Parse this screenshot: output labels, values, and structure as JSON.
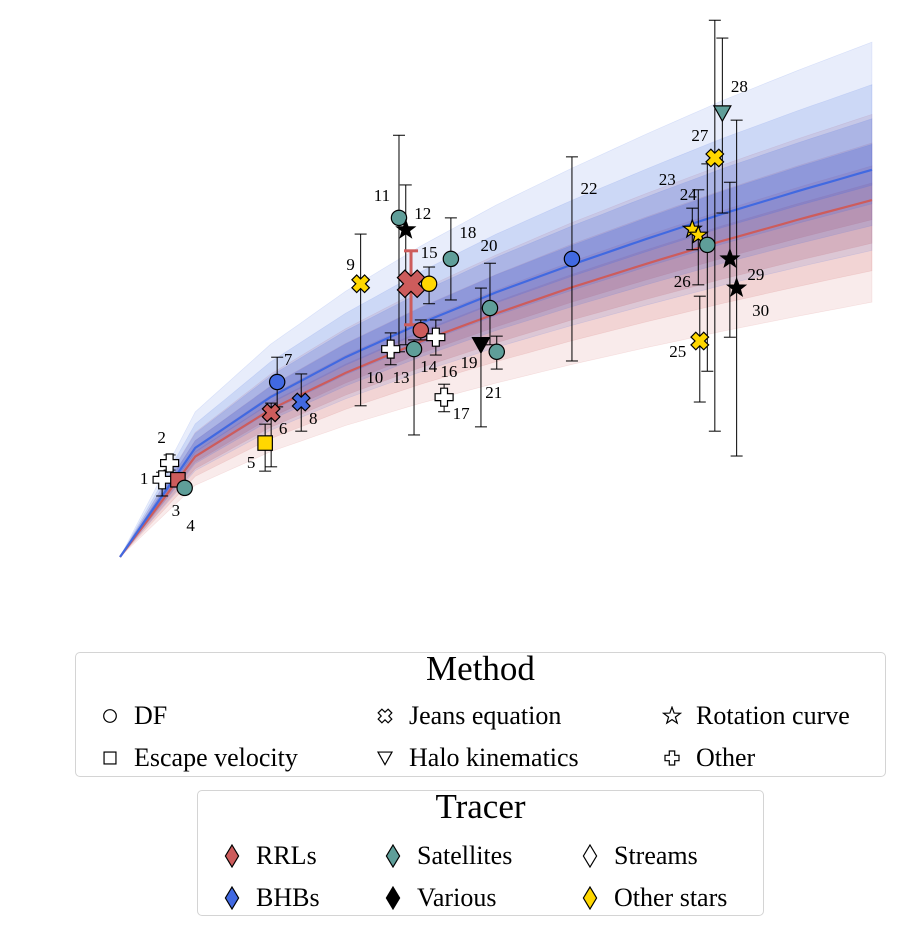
{
  "chart_data": {
    "type": "scatter",
    "title": "",
    "xlabel": "",
    "ylabel": "",
    "xlim": [
      0,
      100
    ],
    "ylim": [
      0,
      100
    ],
    "grid": false,
    "axes_visible": false,
    "tracer_colors": {
      "RRLs": "#cd5c5c",
      "BHBs": "#4169e1",
      "Satellites": "#5f9e99",
      "Various": "#000000",
      "Streams": "#ffffff",
      "Other stars": "#ffd700"
    },
    "method_markers": {
      "DF": "circle",
      "Escape velocity": "square",
      "Jeans equation": "x",
      "Halo kinematics": "triangle-down",
      "Rotation curve": "star",
      "Other": "plus"
    },
    "model_curves": [
      {
        "color": "#cd5c5c",
        "x": [
          0,
          10,
          20,
          30,
          40,
          50,
          60,
          70,
          80,
          90,
          100
        ],
        "y": [
          0,
          18.6,
          27.3,
          34.1,
          39.9,
          45.1,
          49.9,
          54.3,
          58.5,
          62.4,
          66.1
        ],
        "uncertainty_band": true
      },
      {
        "color": "#4169e1",
        "x": [
          0,
          10,
          20,
          30,
          40,
          50,
          60,
          70,
          80,
          90,
          100
        ],
        "y": [
          0,
          20.2,
          29.6,
          37.0,
          43.3,
          49.0,
          54.1,
          58.9,
          63.5,
          67.7,
          71.7
        ],
        "uncertainty_band": true
      }
    ],
    "points": [
      {
        "label": "1",
        "x": 5.6,
        "y": 14.3,
        "err": [
          11.3,
          15.7
        ],
        "method": "Other",
        "tracer": "Streams"
      },
      {
        "label": "2",
        "x": 6.6,
        "y": 17.4,
        "err": [
          16.1,
          18.9
        ],
        "method": "Other",
        "tracer": "Streams"
      },
      {
        "label": "3",
        "x": 7.7,
        "y": 14.3,
        "err": null,
        "method": "Escape velocity",
        "tracer": "RRLs"
      },
      {
        "label": "4",
        "x": 8.6,
        "y": 12.8,
        "err": null,
        "method": "DF",
        "tracer": "Satellites"
      },
      {
        "label": "5",
        "x": 19.3,
        "y": 21.1,
        "err": [
          15.9,
          24.6
        ],
        "method": "Escape velocity",
        "tracer": "Other stars"
      },
      {
        "label": "6",
        "x": 20.1,
        "y": 26.7,
        "err": [
          16.7,
          28.5
        ],
        "method": "Jeans equation",
        "tracer": "RRLs"
      },
      {
        "label": "7",
        "x": 20.9,
        "y": 32.4,
        "err": [
          27.8,
          37.0
        ],
        "method": "DF",
        "tracer": "BHBs"
      },
      {
        "label": "8",
        "x": 24.1,
        "y": 28.7,
        "err": [
          23.3,
          33.9
        ],
        "method": "Jeans equation",
        "tracer": "BHBs"
      },
      {
        "label": "9",
        "x": 32.0,
        "y": 50.6,
        "err": [
          28.0,
          59.8
        ],
        "method": "Jeans equation",
        "tracer": "Other stars"
      },
      {
        "label": "10",
        "x": 36.0,
        "y": 38.5,
        "err": [
          35.6,
          41.5
        ],
        "method": "Other",
        "tracer": "Streams"
      },
      {
        "label": "11",
        "x": 37.1,
        "y": 62.8,
        "err": [
          38.0,
          78.1
        ],
        "method": "DF",
        "tracer": "Satellites"
      },
      {
        "label": "12",
        "x": 38.0,
        "y": 60.6,
        "err": [
          39.3,
          68.9
        ],
        "method": "Rotation curve",
        "tracer": "Various"
      },
      {
        "label": "",
        "x": 38.7,
        "y": 50.6,
        "err": [
          43.0,
          56.7
        ],
        "method": "Jeans equation",
        "tracer": "RRLs",
        "highlight": true
      },
      {
        "label": "13",
        "x": 39.1,
        "y": 38.5,
        "err": [
          22.6,
          40.2
        ],
        "method": "DF",
        "tracer": "Satellites"
      },
      {
        "label": "14",
        "x": 40.0,
        "y": 42.0,
        "err": [
          40.2,
          43.9
        ],
        "method": "DF",
        "tracer": "RRLs"
      },
      {
        "label": "15",
        "x": 41.1,
        "y": 50.6,
        "err": [
          46.9,
          53.7
        ],
        "method": "DF",
        "tracer": "Other stars"
      },
      {
        "label": "16",
        "x": 42.0,
        "y": 40.7,
        "err": [
          37.4,
          43.9
        ],
        "method": "Other",
        "tracer": "Streams"
      },
      {
        "label": "17",
        "x": 43.1,
        "y": 29.6,
        "err": [
          26.9,
          32.0
        ],
        "method": "Other",
        "tracer": "Streams"
      },
      {
        "label": "18",
        "x": 44.0,
        "y": 55.2,
        "err": [
          47.6,
          62.8
        ],
        "method": "DF",
        "tracer": "Satellites"
      },
      {
        "label": "19",
        "x": 48.0,
        "y": 39.3,
        "err": [
          24.1,
          49.8
        ],
        "method": "Halo kinematics",
        "tracer": "Various"
      },
      {
        "label": "20",
        "x": 49.2,
        "y": 46.1,
        "err": [
          39.3,
          54.4
        ],
        "method": "DF",
        "tracer": "Satellites"
      },
      {
        "label": "21",
        "x": 50.1,
        "y": 38.0,
        "err": [
          34.8,
          40.9
        ],
        "method": "DF",
        "tracer": "Satellites"
      },
      {
        "label": "22",
        "x": 60.1,
        "y": 55.2,
        "err": [
          36.3,
          74.1
        ],
        "method": "DF",
        "tracer": "BHBs"
      },
      {
        "label": "23",
        "x": 76.1,
        "y": 60.7,
        "err": [
          56.9,
          64.6
        ],
        "method": "Rotation curve",
        "tracer": "Other stars"
      },
      {
        "label": "24",
        "x": 76.9,
        "y": 59.6,
        "err": [
          50.4,
          68.0
        ],
        "method": "Rotation curve",
        "tracer": "Other stars"
      },
      {
        "label": "25",
        "x": 77.1,
        "y": 40.0,
        "err": [
          28.7,
          48.3
        ],
        "method": "Jeans equation",
        "tracer": "Other stars"
      },
      {
        "label": "26",
        "x": 78.1,
        "y": 57.8,
        "err": [
          34.4,
          72.8
        ],
        "method": "DF",
        "tracer": "Satellites"
      },
      {
        "label": "27",
        "x": 79.1,
        "y": 73.9,
        "err": [
          23.3,
          99.4
        ],
        "method": "Jeans equation",
        "tracer": "Other stars"
      },
      {
        "label": "28",
        "x": 80.1,
        "y": 82.2,
        "err": [
          63.7,
          96.1
        ],
        "method": "Halo kinematics",
        "tracer": "Satellites"
      },
      {
        "label": "29",
        "x": 81.1,
        "y": 55.2,
        "err": [
          40.7,
          69.4
        ],
        "method": "Rotation curve",
        "tracer": "Various"
      },
      {
        "label": "30",
        "x": 82.0,
        "y": 49.8,
        "err": [
          18.7,
          80.9
        ],
        "method": "Rotation curve",
        "tracer": "Various"
      }
    ]
  },
  "legends": {
    "method": {
      "title": "Method",
      "items": [
        {
          "label": "DF",
          "marker": "circle"
        },
        {
          "label": "Jeans equation",
          "marker": "x"
        },
        {
          "label": "Rotation curve",
          "marker": "star"
        },
        {
          "label": "Escape velocity",
          "marker": "square"
        },
        {
          "label": "Halo kinematics",
          "marker": "triangle-down"
        },
        {
          "label": "Other",
          "marker": "plus"
        }
      ]
    },
    "tracer": {
      "title": "Tracer",
      "items": [
        {
          "label": "RRLs",
          "color": "#cd5c5c"
        },
        {
          "label": "Satellites",
          "color": "#5f9e99"
        },
        {
          "label": "Streams",
          "color": "#ffffff"
        },
        {
          "label": "BHBs",
          "color": "#4169e1"
        },
        {
          "label": "Various",
          "color": "#000000"
        },
        {
          "label": "Other stars",
          "color": "#ffd700"
        }
      ]
    }
  }
}
